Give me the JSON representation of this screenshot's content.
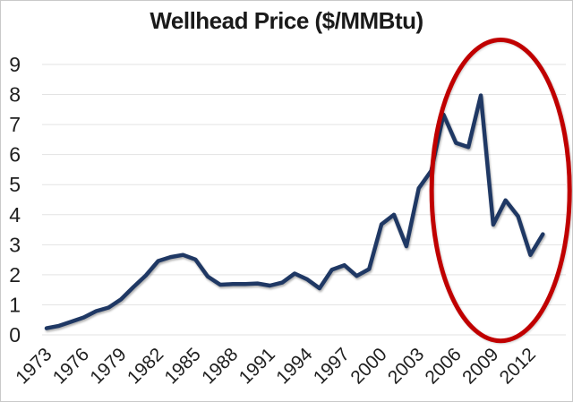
{
  "title": "Wellhead Price ($/MMBtu)",
  "colors": {
    "line": "#1F3864",
    "annotation_red": "#C00000",
    "gridline": "#E3E3E3",
    "text": "#1F1F1F",
    "background": "#FFFFFF",
    "frame_border": "#C9C9C9"
  },
  "chart_data": {
    "type": "line",
    "title": "Wellhead Price ($/MMBtu)",
    "xlabel": "",
    "ylabel": "",
    "x": [
      1973,
      1974,
      1975,
      1976,
      1977,
      1978,
      1979,
      1980,
      1981,
      1982,
      1983,
      1984,
      1985,
      1986,
      1987,
      1988,
      1989,
      1990,
      1991,
      1992,
      1993,
      1994,
      1995,
      1996,
      1997,
      1998,
      1999,
      2000,
      2001,
      2002,
      2003,
      2004,
      2005,
      2006,
      2007,
      2008,
      2009,
      2010,
      2011,
      2012,
      2013
    ],
    "values": [
      0.22,
      0.3,
      0.44,
      0.58,
      0.79,
      0.91,
      1.18,
      1.59,
      1.98,
      2.46,
      2.59,
      2.66,
      2.51,
      1.94,
      1.67,
      1.69,
      1.69,
      1.71,
      1.64,
      1.74,
      2.04,
      1.85,
      1.55,
      2.17,
      2.32,
      1.96,
      2.19,
      3.68,
      4.0,
      2.95,
      4.88,
      5.46,
      7.33,
      6.39,
      6.25,
      7.97,
      3.67,
      4.48,
      3.95,
      2.66,
      3.35
    ],
    "xticks": [
      1973,
      1976,
      1979,
      1982,
      1985,
      1988,
      1991,
      1994,
      1997,
      2000,
      2003,
      2006,
      2009,
      2012
    ],
    "yticks": [
      0,
      1,
      2,
      3,
      4,
      5,
      6,
      7,
      8,
      9
    ],
    "ylim": [
      0,
      9
    ],
    "grid": true,
    "legend": false,
    "line_color": "#1F3864",
    "grid_color": "#E3E3E3",
    "annotation": {
      "shape": "ellipse",
      "center_x_year": 2009.6,
      "center_y_value": 4.81,
      "radius_x_years": 5.56,
      "radius_y_values": 5.01,
      "color": "#C00000"
    }
  }
}
